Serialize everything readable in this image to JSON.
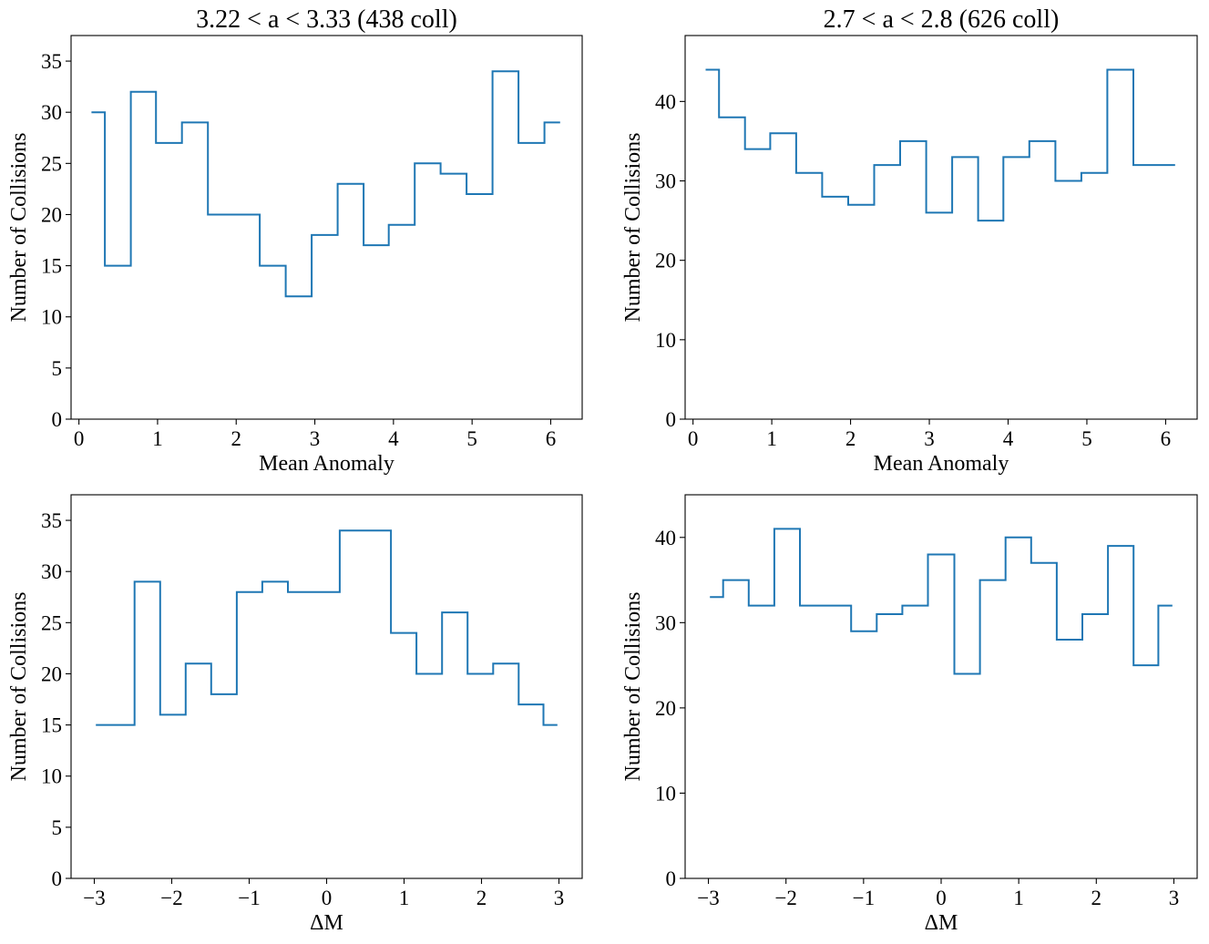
{
  "chart_data": [
    {
      "type": "step",
      "title": "3.22 < a < 3.33 (438 coll)",
      "xlabel": "Mean Anomaly",
      "ylabel": "Number of Collisions",
      "xlim": [
        -0.1,
        6.4
      ],
      "ylim": [
        0,
        37.5
      ],
      "xticks": [
        0,
        1,
        2,
        3,
        4,
        5,
        6
      ],
      "yticks": [
        0,
        5,
        10,
        15,
        20,
        25,
        30,
        35
      ],
      "x": [
        0.16,
        0.33,
        0.66,
        0.98,
        1.31,
        1.64,
        1.97,
        2.3,
        2.63,
        2.96,
        3.29,
        3.62,
        3.94,
        4.27,
        4.6,
        4.93,
        5.26,
        5.59,
        5.92,
        6.12
      ],
      "y": [
        30,
        15,
        32,
        27,
        29,
        20,
        20,
        15,
        12,
        18,
        23,
        17,
        19,
        25,
        24,
        22,
        34,
        27,
        29,
        29
      ],
      "grid": false,
      "color": "#1f77b4"
    },
    {
      "type": "step",
      "title": "2.7 < a < 2.8 (626 coll)",
      "xlabel": "Mean Anomaly",
      "ylabel": "Number of Collisions",
      "xlim": [
        -0.1,
        6.4
      ],
      "ylim": [
        0,
        48.3
      ],
      "xticks": [
        0,
        1,
        2,
        3,
        4,
        5,
        6
      ],
      "yticks": [
        0,
        10,
        20,
        30,
        40
      ],
      "x": [
        0.16,
        0.33,
        0.66,
        0.98,
        1.31,
        1.64,
        1.97,
        2.3,
        2.63,
        2.96,
        3.29,
        3.62,
        3.94,
        4.27,
        4.6,
        4.93,
        5.26,
        5.59,
        5.92,
        6.12
      ],
      "y": [
        44,
        38,
        34,
        36,
        31,
        28,
        27,
        32,
        35,
        26,
        33,
        25,
        33,
        35,
        30,
        31,
        44,
        32,
        32,
        32
      ],
      "grid": false,
      "color": "#1f77b4"
    },
    {
      "type": "step",
      "title": "",
      "xlabel": "ΔM",
      "ylabel": "Number of Collisions",
      "xlim": [
        -3.3,
        3.3
      ],
      "ylim": [
        0,
        37.5
      ],
      "xticks": [
        -3,
        -2,
        -1,
        0,
        1,
        2,
        3
      ],
      "yticks": [
        0,
        5,
        10,
        15,
        20,
        25,
        30,
        35
      ],
      "x": [
        -2.98,
        -2.48,
        -2.15,
        -1.82,
        -1.49,
        -1.16,
        -0.83,
        -0.5,
        -0.17,
        0.17,
        0.5,
        0.83,
        1.16,
        1.49,
        1.82,
        2.15,
        2.48,
        2.8,
        2.98
      ],
      "y": [
        15,
        29,
        16,
        21,
        18,
        28,
        29,
        28,
        28,
        34,
        34,
        24,
        20,
        26,
        20,
        21,
        17,
        15,
        15
      ],
      "grid": false,
      "color": "#1f77b4"
    },
    {
      "type": "step",
      "title": "",
      "xlabel": "ΔM",
      "ylabel": "Number of Collisions",
      "xlim": [
        -3.3,
        3.3
      ],
      "ylim": [
        0,
        45
      ],
      "xticks": [
        -3,
        -2,
        -1,
        0,
        1,
        2,
        3
      ],
      "yticks": [
        0,
        10,
        20,
        30,
        40
      ],
      "x": [
        -2.98,
        -2.81,
        -2.48,
        -2.15,
        -1.82,
        -1.49,
        -1.16,
        -0.83,
        -0.5,
        -0.17,
        0.17,
        0.5,
        0.83,
        1.16,
        1.49,
        1.82,
        2.15,
        2.48,
        2.8,
        2.98
      ],
      "y": [
        33,
        35,
        32,
        41,
        32,
        32,
        29,
        31,
        32,
        38,
        24,
        35,
        40,
        37,
        28,
        31,
        39,
        25,
        32,
        32
      ],
      "grid": false,
      "color": "#1f77b4"
    }
  ]
}
